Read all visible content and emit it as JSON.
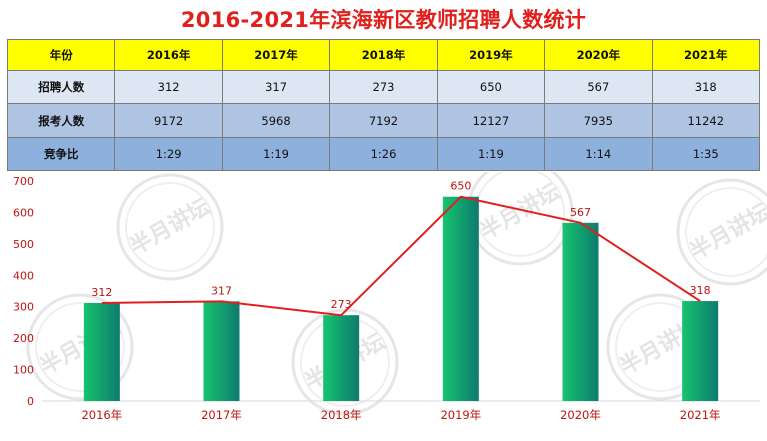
{
  "title": "2016-2021年滨海新区教师招聘人数统计",
  "watermark": "半月讲坛",
  "table": {
    "header": [
      "年份",
      "2016年",
      "2017年",
      "2018年",
      "2019年",
      "2020年",
      "2021年"
    ],
    "rows": [
      {
        "label": "招聘人数",
        "values": [
          "312",
          "317",
          "273",
          "650",
          "567",
          "318"
        ]
      },
      {
        "label": "报考人数",
        "values": [
          "9172",
          "5968",
          "7192",
          "12127",
          "7935",
          "11242"
        ]
      },
      {
        "label": "竞争比",
        "values": [
          "1:29",
          "1:19",
          "1:26",
          "1:19",
          "1:14",
          "1:35"
        ]
      }
    ]
  },
  "chart_data": {
    "type": "bar",
    "categories": [
      "2016年",
      "2017年",
      "2018年",
      "2019年",
      "2020年",
      "2021年"
    ],
    "series": [
      {
        "type": "bar",
        "values": [
          312,
          317,
          273,
          650,
          567,
          318
        ]
      },
      {
        "type": "line",
        "values": [
          312,
          317,
          273,
          650,
          567,
          318
        ]
      }
    ],
    "data_labels": [
      "312",
      "317",
      "273",
      "650",
      "567",
      "318"
    ],
    "yticks": [
      "0",
      "100",
      "200",
      "300",
      "400",
      "500",
      "600",
      "700"
    ],
    "ylim": [
      0,
      700
    ],
    "grid": false,
    "colors": {
      "bar_top": "#16c46e",
      "bar_bottom": "#0e7a6e",
      "line": "#e0201c",
      "labels": "#c0140f"
    }
  }
}
